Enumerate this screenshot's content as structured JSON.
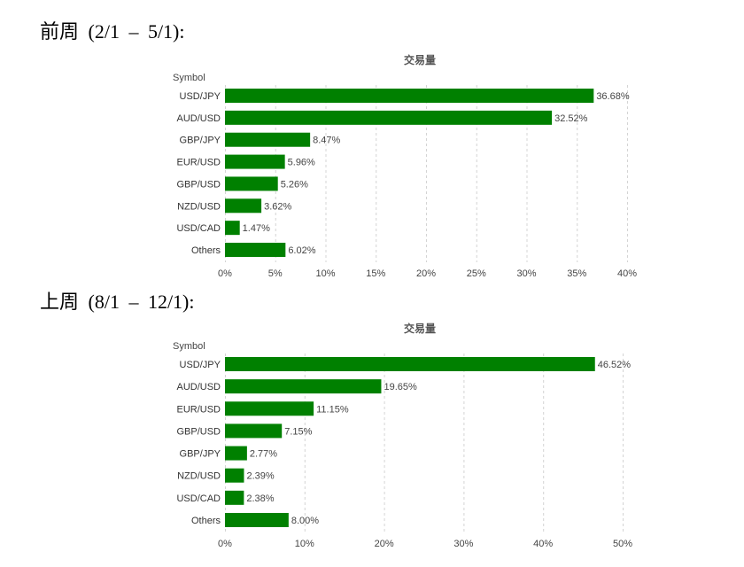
{
  "headings": [
    "前周 (2/1 – 5/1):",
    "上周 (8/1 – 12/1):"
  ],
  "colors": {
    "bar": "#008000",
    "gridline": "#d4d4d4"
  },
  "chart_data": [
    {
      "type": "bar",
      "orientation": "horizontal",
      "title": "交易量",
      "ylabel": "Symbol",
      "categories": [
        "USD/JPY",
        "AUD/USD",
        "GBP/JPY",
        "EUR/USD",
        "GBP/USD",
        "NZD/USD",
        "USD/CAD",
        "Others"
      ],
      "values": [
        36.68,
        32.52,
        8.47,
        5.96,
        5.26,
        3.62,
        1.47,
        6.02
      ],
      "value_labels": [
        "36.68%",
        "32.52%",
        "8.47%",
        "5.96%",
        "5.26%",
        "3.62%",
        "1.47%",
        "6.02%"
      ],
      "xlim": [
        0,
        40
      ],
      "xticks": [
        0,
        5,
        10,
        15,
        20,
        25,
        30,
        35,
        40
      ],
      "xtick_labels": [
        "0%",
        "5%",
        "10%",
        "15%",
        "20%",
        "25%",
        "30%",
        "35%",
        "40%"
      ],
      "grid": true
    },
    {
      "type": "bar",
      "orientation": "horizontal",
      "title": "交易量",
      "ylabel": "Symbol",
      "categories": [
        "USD/JPY",
        "AUD/USD",
        "EUR/USD",
        "GBP/USD",
        "GBP/JPY",
        "NZD/USD",
        "USD/CAD",
        "Others"
      ],
      "values": [
        46.52,
        19.65,
        11.15,
        7.15,
        2.77,
        2.39,
        2.38,
        8.0
      ],
      "value_labels": [
        "46.52%",
        "19.65%",
        "11.15%",
        "7.15%",
        "2.77%",
        "2.39%",
        "2.38%",
        "8.00%"
      ],
      "xlim": [
        0,
        50
      ],
      "xticks": [
        0,
        10,
        20,
        30,
        40,
        50
      ],
      "xtick_labels": [
        "0%",
        "10%",
        "20%",
        "30%",
        "40%",
        "50%"
      ],
      "grid": true
    }
  ]
}
